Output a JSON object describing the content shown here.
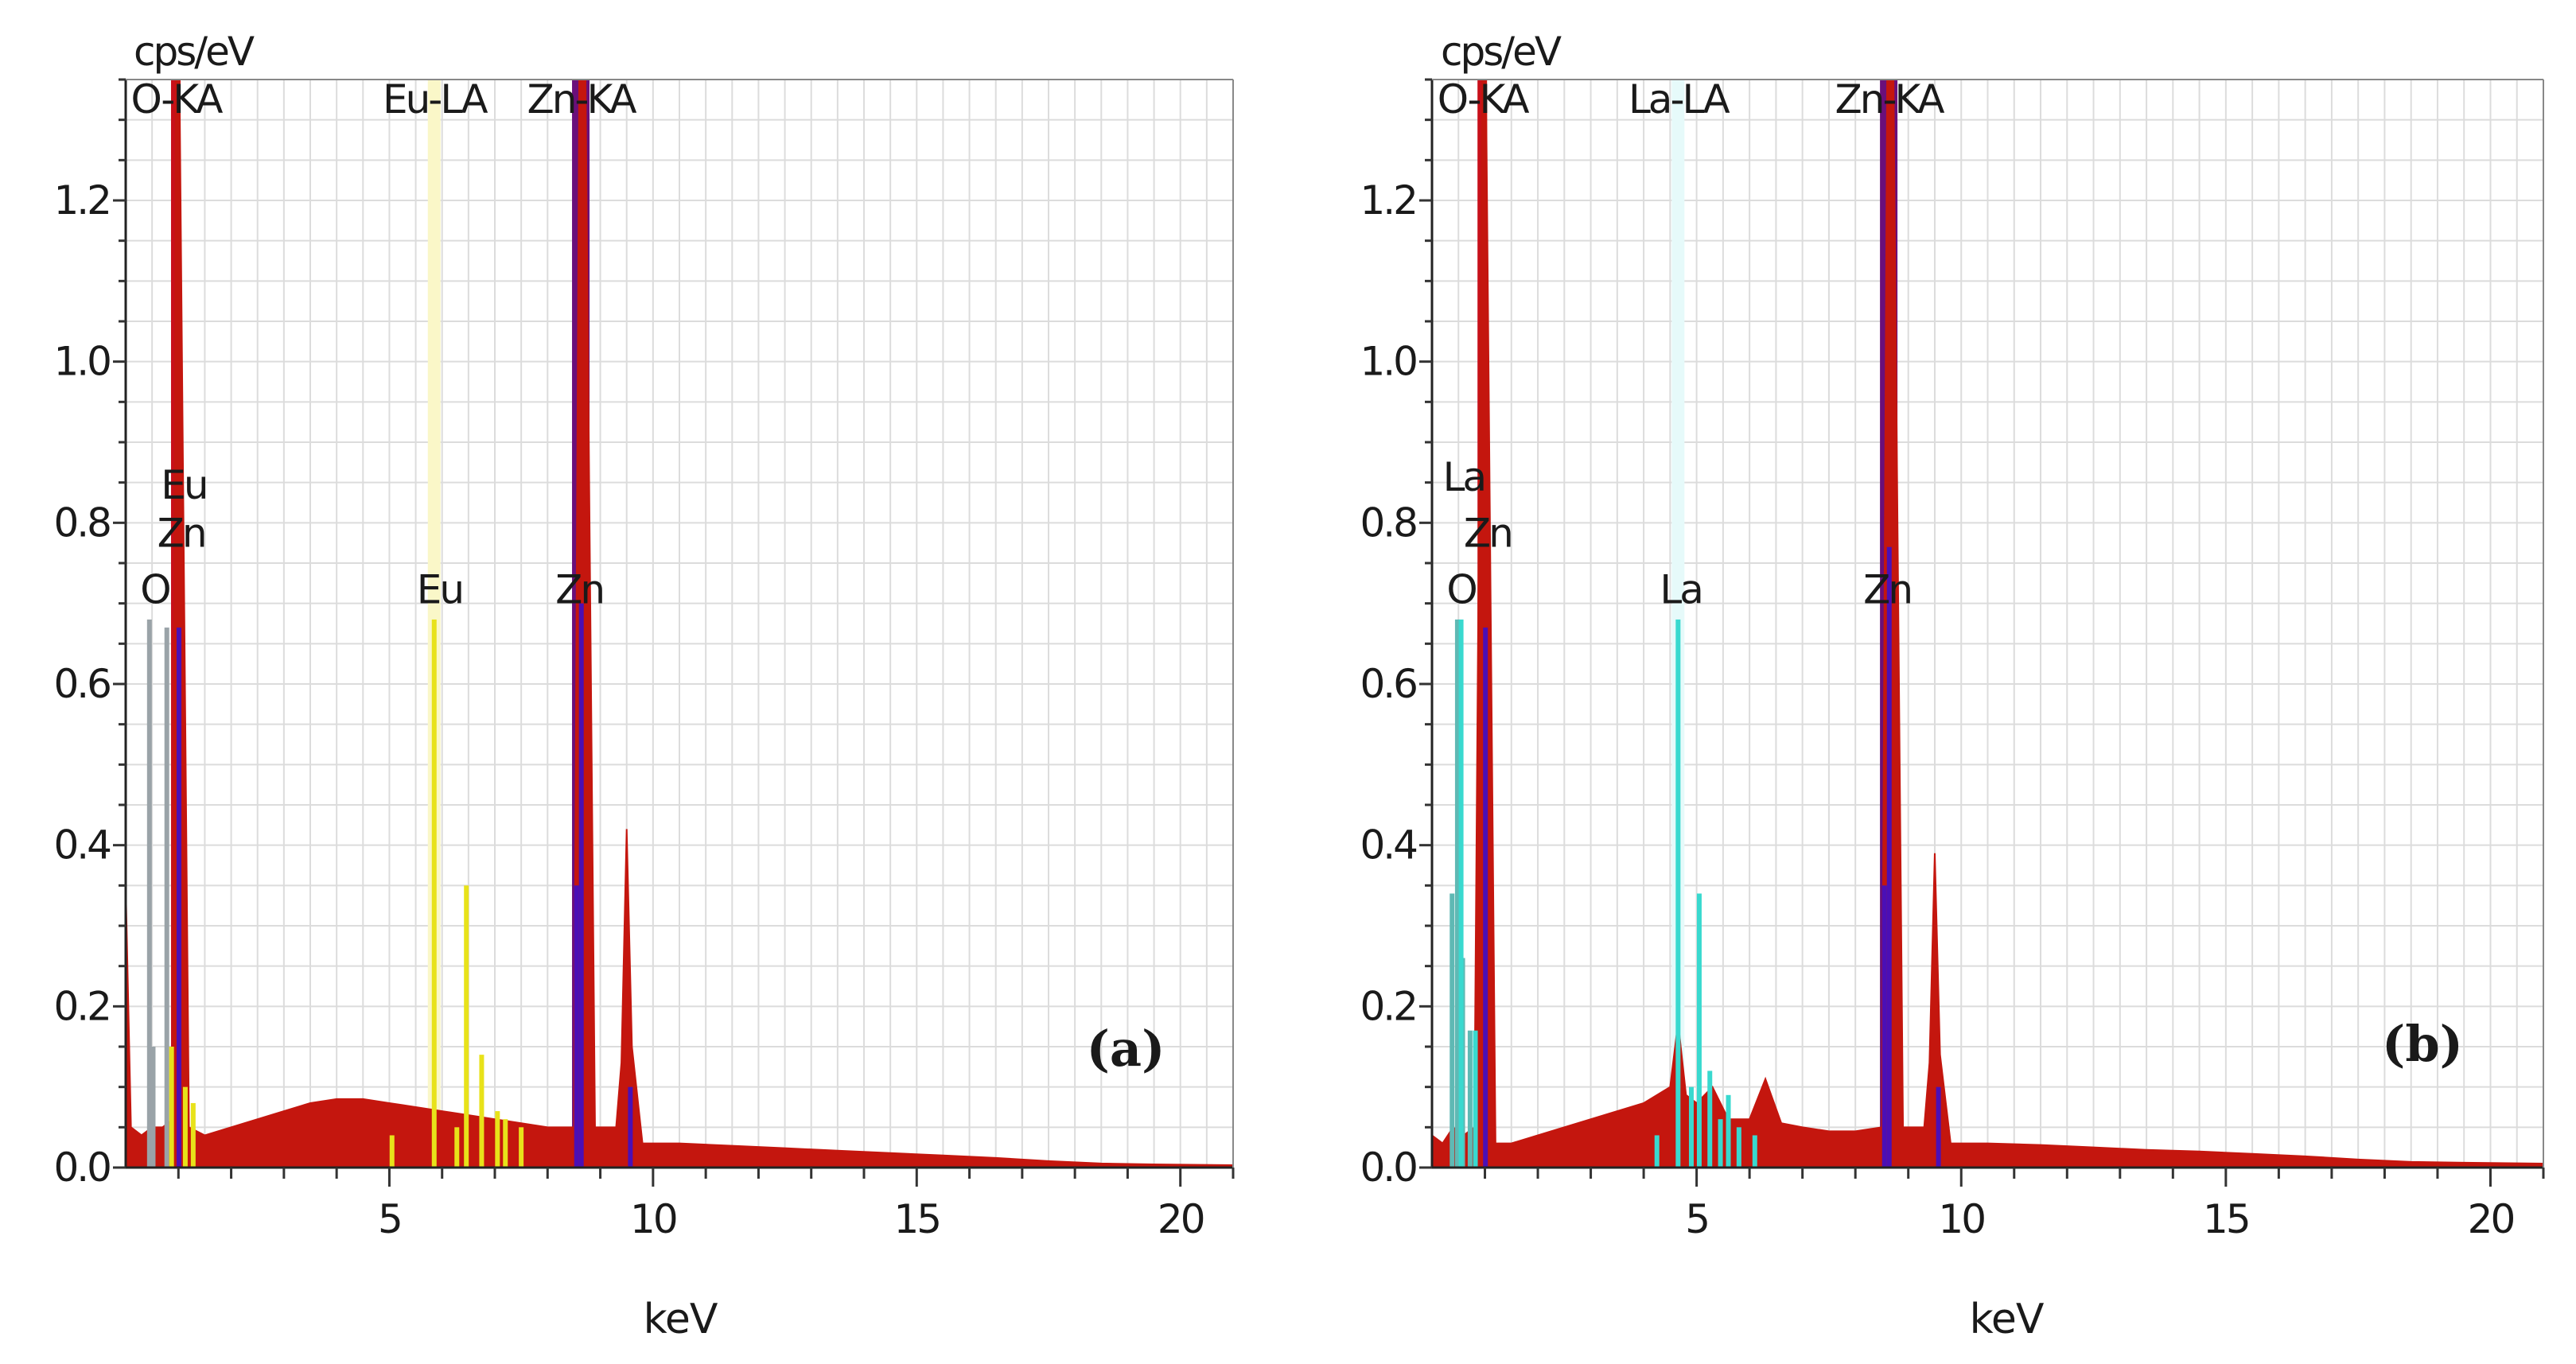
{
  "chart_data": [
    {
      "type": "bar",
      "panel": "(a)",
      "title": "",
      "ylabel": "cps/eV",
      "xlabel": "keV",
      "xlim": [
        0,
        21
      ],
      "ylim": [
        0,
        1.35
      ],
      "x_ticks": [
        5,
        10,
        15,
        20
      ],
      "x_tick_labels": [
        "5",
        "10",
        "15",
        "20"
      ],
      "y_ticks": [
        0.0,
        0.2,
        0.4,
        0.6,
        0.8,
        1.0,
        1.2
      ],
      "y_tick_labels": [
        "0.0",
        "0.2",
        "0.4",
        "0.6",
        "0.8",
        "1.0",
        "1.2"
      ],
      "grid": true,
      "colors": {
        "spectrum": "#c4160e",
        "O": "#9aa3a8",
        "Zn": "#4b0fb5",
        "Eu": "#e8e21a",
        "line_O": "#c8101a",
        "line_Zn": "#6a0f7a",
        "line_Eu": "#faf7c8"
      },
      "line_markers": [
        {
          "label": "O-KA",
          "element": "O",
          "x": 0.95
        },
        {
          "label": "Eu-LA",
          "element": "Eu",
          "x": 5.85
        },
        {
          "label": "Zn-KA",
          "element": "Zn",
          "x": 8.63
        }
      ],
      "peak_labels": [
        {
          "text": "Eu",
          "x": 1.1,
          "y": 0.83
        },
        {
          "text": "Zn",
          "x": 1.05,
          "y": 0.77
        },
        {
          "text": "O",
          "x": 0.55,
          "y": 0.7
        },
        {
          "text": "Eu",
          "x": 5.95,
          "y": 0.7
        },
        {
          "text": "Zn",
          "x": 8.6,
          "y": 0.7
        }
      ],
      "spectrum": [
        [
          0.0,
          0.35
        ],
        [
          0.1,
          0.05
        ],
        [
          0.3,
          0.04
        ],
        [
          0.5,
          0.05
        ],
        [
          0.7,
          0.05
        ],
        [
          0.9,
          0.06
        ],
        [
          0.95,
          1.35
        ],
        [
          1.02,
          1.35
        ],
        [
          1.2,
          0.05
        ],
        [
          1.5,
          0.04
        ],
        [
          2.0,
          0.05
        ],
        [
          2.5,
          0.06
        ],
        [
          3.0,
          0.07
        ],
        [
          3.5,
          0.08
        ],
        [
          4.0,
          0.085
        ],
        [
          4.5,
          0.085
        ],
        [
          5.0,
          0.08
        ],
        [
          5.5,
          0.075
        ],
        [
          6.0,
          0.07
        ],
        [
          6.5,
          0.065
        ],
        [
          7.0,
          0.06
        ],
        [
          7.5,
          0.055
        ],
        [
          8.0,
          0.05
        ],
        [
          8.5,
          0.05
        ],
        [
          8.6,
          1.35
        ],
        [
          8.72,
          1.35
        ],
        [
          8.9,
          0.05
        ],
        [
          9.3,
          0.05
        ],
        [
          9.4,
          0.13
        ],
        [
          9.5,
          0.42
        ],
        [
          9.6,
          0.15
        ],
        [
          9.8,
          0.03
        ],
        [
          10.5,
          0.03
        ],
        [
          11.5,
          0.027
        ],
        [
          12.5,
          0.024
        ],
        [
          13.5,
          0.021
        ],
        [
          14.5,
          0.018
        ],
        [
          15.5,
          0.015
        ],
        [
          16.5,
          0.012
        ],
        [
          17.5,
          0.008
        ],
        [
          18.5,
          0.005
        ],
        [
          19.5,
          0.004
        ],
        [
          21.0,
          0.003
        ]
      ],
      "element_lines": [
        {
          "element": "O",
          "x": 0.45,
          "y": 0.68
        },
        {
          "element": "O",
          "x": 0.52,
          "y": 0.15
        },
        {
          "element": "O",
          "x": 0.78,
          "y": 0.67
        },
        {
          "element": "Zn",
          "x": 1.01,
          "y": 0.67
        },
        {
          "element": "Zn",
          "x": 8.55,
          "y": 0.35
        },
        {
          "element": "Zn",
          "x": 8.64,
          "y": 0.7
        },
        {
          "element": "Zn",
          "x": 9.57,
          "y": 0.1
        },
        {
          "element": "Eu",
          "x": 0.87,
          "y": 0.15
        },
        {
          "element": "Eu",
          "x": 1.13,
          "y": 0.1
        },
        {
          "element": "Eu",
          "x": 1.28,
          "y": 0.08
        },
        {
          "element": "Eu",
          "x": 5.05,
          "y": 0.04
        },
        {
          "element": "Eu",
          "x": 5.85,
          "y": 0.68
        },
        {
          "element": "Eu",
          "x": 6.28,
          "y": 0.05
        },
        {
          "element": "Eu",
          "x": 6.46,
          "y": 0.35
        },
        {
          "element": "Eu",
          "x": 6.75,
          "y": 0.14
        },
        {
          "element": "Eu",
          "x": 7.05,
          "y": 0.07
        },
        {
          "element": "Eu",
          "x": 7.2,
          "y": 0.06
        },
        {
          "element": "Eu",
          "x": 7.5,
          "y": 0.05
        }
      ]
    },
    {
      "type": "bar",
      "panel": "(b)",
      "title": "",
      "ylabel": "cps/eV",
      "xlabel": "keV",
      "xlim": [
        0,
        21
      ],
      "ylim": [
        0,
        1.35
      ],
      "x_ticks": [
        5,
        10,
        15,
        20
      ],
      "x_tick_labels": [
        "5",
        "10",
        "15",
        "20"
      ],
      "y_ticks": [
        0.0,
        0.2,
        0.4,
        0.6,
        0.8,
        1.0,
        1.2
      ],
      "y_tick_labels": [
        "0.0",
        "0.2",
        "0.4",
        "0.6",
        "0.8",
        "1.0",
        "1.2"
      ],
      "grid": true,
      "colors": {
        "spectrum": "#c4160e",
        "O": "#5fb9b4",
        "Zn": "#4b0fb5",
        "La": "#39d9cf",
        "line_O": "#c8101a",
        "line_Zn": "#6a0f7a",
        "line_La": "#e6fafa"
      },
      "line_markers": [
        {
          "label": "O-KA",
          "element": "O",
          "x": 0.95
        },
        {
          "label": "La-LA",
          "element": "La",
          "x": 4.65
        },
        {
          "label": "Zn-KA",
          "element": "Zn",
          "x": 8.63
        }
      ],
      "peak_labels": [
        {
          "text": "La",
          "x": 0.6,
          "y": 0.84
        },
        {
          "text": "Zn",
          "x": 1.05,
          "y": 0.77
        },
        {
          "text": "O",
          "x": 0.55,
          "y": 0.7
        },
        {
          "text": "La",
          "x": 4.7,
          "y": 0.7
        },
        {
          "text": "Zn",
          "x": 8.6,
          "y": 0.7
        }
      ],
      "spectrum": [
        [
          0.0,
          0.04
        ],
        [
          0.2,
          0.03
        ],
        [
          0.4,
          0.05
        ],
        [
          0.6,
          0.04
        ],
        [
          0.8,
          0.05
        ],
        [
          0.95,
          1.35
        ],
        [
          1.02,
          1.35
        ],
        [
          1.2,
          0.03
        ],
        [
          1.5,
          0.03
        ],
        [
          2.0,
          0.04
        ],
        [
          2.5,
          0.05
        ],
        [
          3.0,
          0.06
        ],
        [
          3.5,
          0.07
        ],
        [
          4.0,
          0.08
        ],
        [
          4.5,
          0.1
        ],
        [
          4.65,
          0.18
        ],
        [
          4.8,
          0.09
        ],
        [
          5.0,
          0.08
        ],
        [
          5.3,
          0.1
        ],
        [
          5.6,
          0.06
        ],
        [
          6.0,
          0.06
        ],
        [
          6.3,
          0.11
        ],
        [
          6.6,
          0.055
        ],
        [
          7.0,
          0.05
        ],
        [
          7.5,
          0.045
        ],
        [
          8.0,
          0.045
        ],
        [
          8.5,
          0.05
        ],
        [
          8.6,
          1.35
        ],
        [
          8.72,
          1.35
        ],
        [
          8.9,
          0.05
        ],
        [
          9.3,
          0.05
        ],
        [
          9.4,
          0.13
        ],
        [
          9.5,
          0.39
        ],
        [
          9.6,
          0.14
        ],
        [
          9.8,
          0.03
        ],
        [
          10.5,
          0.03
        ],
        [
          11.5,
          0.028
        ],
        [
          12.5,
          0.025
        ],
        [
          13.5,
          0.022
        ],
        [
          14.5,
          0.02
        ],
        [
          15.5,
          0.017
        ],
        [
          16.5,
          0.014
        ],
        [
          17.5,
          0.01
        ],
        [
          18.5,
          0.007
        ],
        [
          19.5,
          0.006
        ],
        [
          21.0,
          0.005
        ]
      ],
      "element_lines": [
        {
          "element": "O",
          "x": 0.38,
          "y": 0.34
        },
        {
          "element": "O",
          "x": 0.48,
          "y": 0.68
        },
        {
          "element": "O",
          "x": 0.58,
          "y": 0.26
        },
        {
          "element": "O",
          "x": 0.72,
          "y": 0.17
        },
        {
          "element": "Zn",
          "x": 1.01,
          "y": 0.67
        },
        {
          "element": "Zn",
          "x": 8.55,
          "y": 0.35
        },
        {
          "element": "Zn",
          "x": 8.64,
          "y": 0.77
        },
        {
          "element": "Zn",
          "x": 9.57,
          "y": 0.1
        },
        {
          "element": "La",
          "x": 0.55,
          "y": 0.68
        },
        {
          "element": "La",
          "x": 0.82,
          "y": 0.17
        },
        {
          "element": "La",
          "x": 4.25,
          "y": 0.04
        },
        {
          "element": "La",
          "x": 4.65,
          "y": 0.68
        },
        {
          "element": "La",
          "x": 4.9,
          "y": 0.1
        },
        {
          "element": "La",
          "x": 5.05,
          "y": 0.34
        },
        {
          "element": "La",
          "x": 5.25,
          "y": 0.12
        },
        {
          "element": "La",
          "x": 5.45,
          "y": 0.06
        },
        {
          "element": "La",
          "x": 5.6,
          "y": 0.09
        },
        {
          "element": "La",
          "x": 5.8,
          "y": 0.05
        },
        {
          "element": "La",
          "x": 6.1,
          "y": 0.04
        }
      ]
    }
  ]
}
